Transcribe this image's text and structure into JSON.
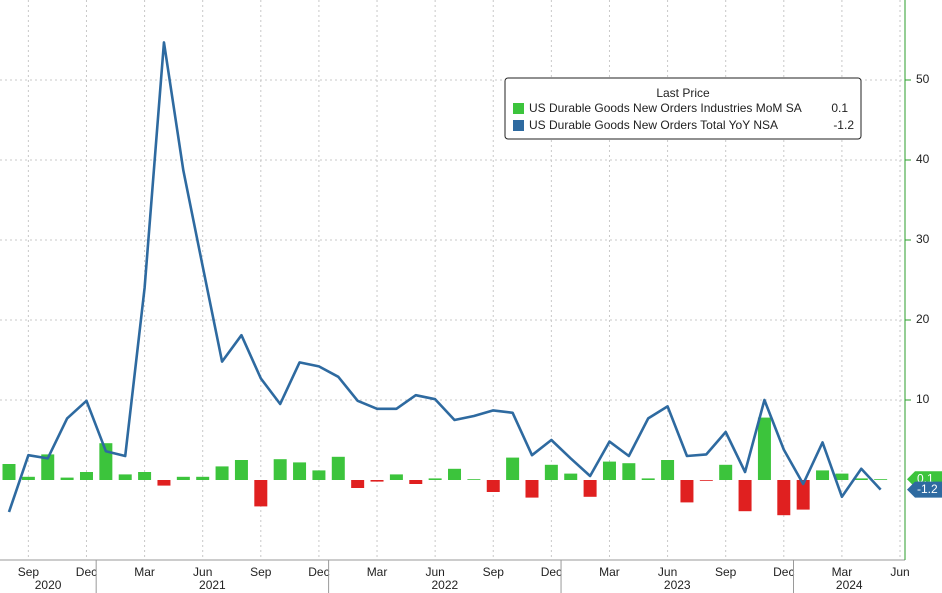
{
  "chart_data": {
    "type": "bar_line",
    "legend_title": "Last Price",
    "x": [
      "2020-08",
      "2020-09",
      "2020-10",
      "2020-11",
      "2020-12",
      "2021-01",
      "2021-02",
      "2021-03",
      "2021-04",
      "2021-05",
      "2021-06",
      "2021-07",
      "2021-08",
      "2021-09",
      "2021-10",
      "2021-11",
      "2021-12",
      "2022-01",
      "2022-02",
      "2022-03",
      "2022-04",
      "2022-05",
      "2022-06",
      "2022-07",
      "2022-08",
      "2022-09",
      "2022-10",
      "2022-11",
      "2022-12",
      "2023-01",
      "2023-02",
      "2023-03",
      "2023-04",
      "2023-05",
      "2023-06",
      "2023-07",
      "2023-08",
      "2023-09",
      "2023-10",
      "2023-11",
      "2023-12",
      "2024-01",
      "2024-02",
      "2024-03",
      "2024-04",
      "2024-05"
    ],
    "series": [
      {
        "name": "US Durable Goods New Orders Industries MoM SA",
        "type": "bar",
        "color": "#3cc43c",
        "negative_color": "#e02020",
        "values": [
          2.0,
          0.4,
          3.2,
          0.3,
          1.0,
          4.6,
          0.7,
          1.0,
          -0.7,
          0.4,
          0.4,
          1.7,
          2.5,
          -3.3,
          2.6,
          2.2,
          1.2,
          2.9,
          -1.0,
          -0.2,
          0.7,
          -0.5,
          0.2,
          1.4,
          0.1,
          -1.5,
          2.8,
          -2.2,
          1.9,
          0.8,
          -2.1,
          2.3,
          2.1,
          0.2,
          2.5,
          -2.8,
          -0.1,
          1.9,
          -3.9,
          7.8,
          -4.4,
          -3.7,
          1.2,
          0.8,
          0.2,
          0.1
        ]
      },
      {
        "name": "US Durable Goods New Orders Total YoY NSA",
        "type": "line",
        "color": "#2e6aa0",
        "values": [
          -4.0,
          3.1,
          2.7,
          7.7,
          9.9,
          3.6,
          3.0,
          24.0,
          54.7,
          38.7,
          26.7,
          14.8,
          18.1,
          12.7,
          9.5,
          14.7,
          14.2,
          12.9,
          9.9,
          8.9,
          8.9,
          10.6,
          10.1,
          7.5,
          8.0,
          8.7,
          8.4,
          3.1,
          5.0,
          2.7,
          0.5,
          4.8,
          3.0,
          7.7,
          9.2,
          3.0,
          3.2,
          6.0,
          1.0,
          10.0,
          3.8,
          -0.5,
          4.7,
          -2.1,
          1.4,
          -1.2
        ]
      }
    ],
    "xticks": [
      {
        "value": "2020-09",
        "label": "Sep"
      },
      {
        "value": "2020-12",
        "label": "Dec"
      },
      {
        "value": "2021-03",
        "label": "Mar"
      },
      {
        "value": "2021-06",
        "label": "Jun"
      },
      {
        "value": "2021-09",
        "label": "Sep"
      },
      {
        "value": "2021-12",
        "label": "Dec"
      },
      {
        "value": "2022-03",
        "label": "Mar"
      },
      {
        "value": "2022-06",
        "label": "Jun"
      },
      {
        "value": "2022-09",
        "label": "Sep"
      },
      {
        "value": "2022-12",
        "label": "Dec"
      },
      {
        "value": "2023-03",
        "label": "Mar"
      },
      {
        "value": "2023-06",
        "label": "Jun"
      },
      {
        "value": "2023-09",
        "label": "Sep"
      },
      {
        "value": "2023-12",
        "label": "Dec"
      },
      {
        "value": "2024-03",
        "label": "Mar"
      },
      {
        "value": "2024-06",
        "label": "Jun"
      }
    ],
    "year_ticks": [
      2020,
      2021,
      2022,
      2023,
      2024
    ],
    "ylim": [
      -10,
      60
    ],
    "yticks": [
      10,
      20,
      30,
      40,
      50
    ],
    "grid": true
  }
}
